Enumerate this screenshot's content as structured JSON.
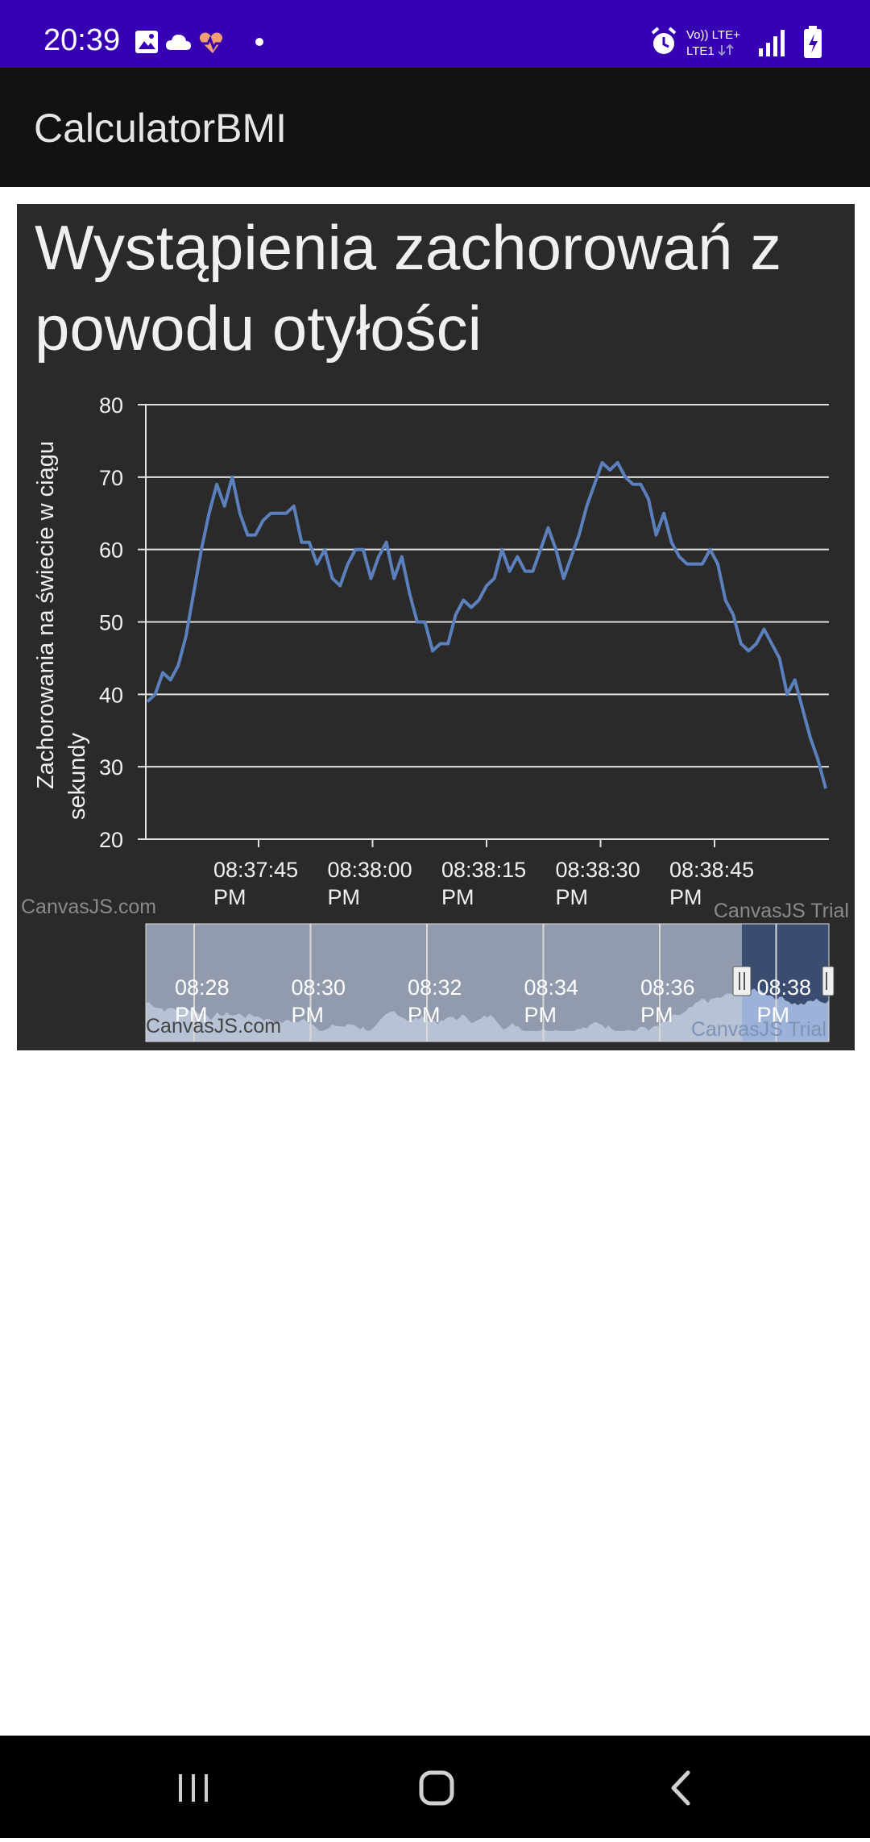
{
  "status_bar": {
    "time": "20:39",
    "left_icons": [
      "image-icon",
      "cloud-icon",
      "heart-pulse-icon",
      "dot-icon"
    ],
    "right_icons": [
      "alarm-icon",
      "volte-lte-icon",
      "signal-icon",
      "battery-charging-icon"
    ],
    "network_top": "Vo)) LTE+",
    "network_bottom": "LTE1",
    "background": "#3700b3"
  },
  "app_bar": {
    "title": "CalculatorBMI",
    "background": "#121212"
  },
  "chart_data": {
    "type": "line",
    "title": "Wystąpienia zachorowań z powodu otyłości",
    "ylabel": [
      "Zachorowania na świecie w ciągu",
      "sekundy"
    ],
    "xlabel": "",
    "ylim": [
      20,
      80
    ],
    "yticks": [
      "80",
      "70",
      "60",
      "50",
      "40",
      "30",
      "20"
    ],
    "xticks": [
      {
        "time": "08:37:45",
        "ampm": "PM"
      },
      {
        "time": "08:38:00",
        "ampm": "PM"
      },
      {
        "time": "08:38:15",
        "ampm": "PM"
      },
      {
        "time": "08:38:30",
        "ampm": "PM"
      },
      {
        "time": "08:38:45",
        "ampm": "PM"
      }
    ],
    "grid": true,
    "series": [
      {
        "color": "#5b80bd",
        "values": [
          39,
          40,
          43,
          42,
          44,
          48,
          54,
          60,
          65,
          69,
          66,
          70,
          65,
          62,
          62,
          64,
          65,
          65,
          65,
          66,
          61,
          61,
          58,
          60,
          56,
          55,
          58,
          60,
          60,
          56,
          59,
          61,
          56,
          59,
          54,
          50,
          50,
          46,
          47,
          47,
          51,
          53,
          52,
          53,
          55,
          56,
          60,
          57,
          59,
          57,
          57,
          60,
          63,
          60,
          56,
          59,
          62,
          66,
          69,
          72,
          71,
          72,
          70,
          69,
          69,
          67,
          62,
          65,
          61,
          59,
          58,
          58,
          58,
          60,
          58,
          53,
          51,
          47,
          46,
          47,
          49,
          47,
          45,
          40,
          42,
          38,
          34,
          31,
          27
        ]
      }
    ],
    "navigator": {
      "labels": [
        {
          "time": "08:28",
          "ampm": "PM"
        },
        {
          "time": "08:30",
          "ampm": "PM"
        },
        {
          "time": "08:32",
          "ampm": "PM"
        },
        {
          "time": "08:34",
          "ampm": "PM"
        },
        {
          "time": "08:36",
          "ampm": "PM"
        },
        {
          "time": "08:38",
          "ampm": "PM"
        }
      ],
      "selected_range_start": 0.875,
      "selected_range_end": 1.0
    },
    "credit_text": "CanvasJS.com",
    "trial_text": "CanvasJS Trial",
    "background": "#2a2a2a",
    "line_color": "#5b80bd",
    "navigator_fill": "#a9bee3"
  },
  "nav_bar": {
    "recents_icon": "recents-icon",
    "home_icon": "home-icon",
    "back_icon": "back-icon"
  }
}
